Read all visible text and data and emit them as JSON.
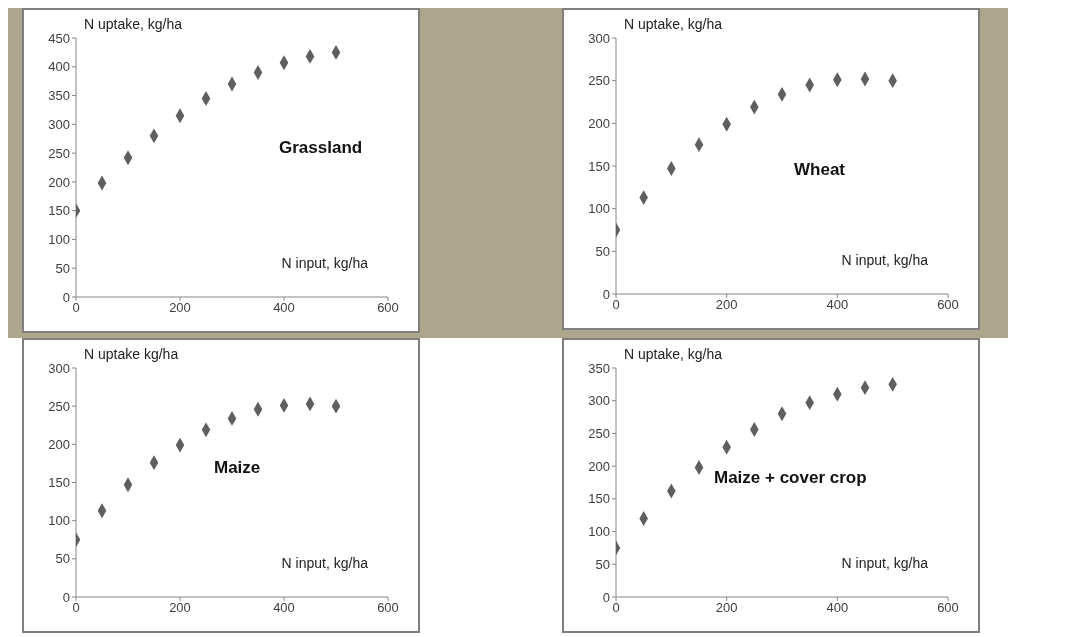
{
  "chart_data": [
    {
      "type": "scatter",
      "title": "Grassland",
      "xlabel": "N input, kg/ha",
      "ylabel": "N uptake, kg/ha",
      "x": [
        0,
        50,
        100,
        150,
        200,
        250,
        300,
        350,
        400,
        450,
        500
      ],
      "series": [
        {
          "color": "#5f5f5f",
          "values": [
            150,
            198,
            242,
            280,
            315,
            345,
            370,
            390,
            407,
            418,
            425
          ]
        }
      ],
      "xlim": [
        0,
        600
      ],
      "xticks": [
        0,
        200,
        400,
        600
      ],
      "ylim": [
        0,
        450
      ],
      "yticks": [
        0,
        50,
        100,
        150,
        200,
        250,
        300,
        350,
        400,
        450
      ],
      "marker": "diamond",
      "grid": false,
      "legend": false
    },
    {
      "type": "scatter",
      "title": "Wheat",
      "xlabel": "N input, kg/ha",
      "ylabel": "N uptake, kg/ha",
      "x": [
        0,
        50,
        100,
        150,
        200,
        250,
        300,
        350,
        400,
        450,
        500
      ],
      "series": [
        {
          "color": "#5f5f5f",
          "values": [
            75,
            113,
            147,
            175,
            199,
            219,
            234,
            245,
            251,
            252,
            250
          ]
        }
      ],
      "xlim": [
        0,
        600
      ],
      "xticks": [
        0,
        200,
        400,
        600
      ],
      "ylim": [
        0,
        300
      ],
      "yticks": [
        0,
        50,
        100,
        150,
        200,
        250,
        300
      ],
      "marker": "diamond",
      "grid": false,
      "legend": false
    },
    {
      "type": "scatter",
      "title": "Maize",
      "xlabel": "N input, kg/ha",
      "ylabel": "N uptake kg/ha",
      "x": [
        0,
        50,
        100,
        150,
        200,
        250,
        300,
        350,
        400,
        450,
        500
      ],
      "series": [
        {
          "color": "#5f5f5f",
          "values": [
            75,
            113,
            147,
            176,
            199,
            219,
            234,
            246,
            251,
            253,
            250
          ]
        }
      ],
      "xlim": [
        0,
        600
      ],
      "xticks": [
        0,
        200,
        400,
        600
      ],
      "ylim": [
        0,
        300
      ],
      "yticks": [
        0,
        50,
        100,
        150,
        200,
        250,
        300
      ],
      "marker": "diamond",
      "grid": false,
      "legend": false
    },
    {
      "type": "scatter",
      "title": "Maize + cover crop",
      "xlabel": "N input, kg/ha",
      "ylabel": "N uptake, kg/ha",
      "x": [
        0,
        50,
        100,
        150,
        200,
        250,
        300,
        350,
        400,
        450,
        500
      ],
      "series": [
        {
          "color": "#5f5f5f",
          "values": [
            75,
            120,
            162,
            198,
            229,
            256,
            280,
            297,
            310,
            320,
            325
          ]
        }
      ],
      "xlim": [
        0,
        600
      ],
      "xticks": [
        0,
        200,
        400,
        600
      ],
      "ylim": [
        0,
        350
      ],
      "yticks": [
        0,
        50,
        100,
        150,
        200,
        250,
        300,
        350
      ],
      "marker": "diamond",
      "grid": false,
      "legend": false
    }
  ]
}
